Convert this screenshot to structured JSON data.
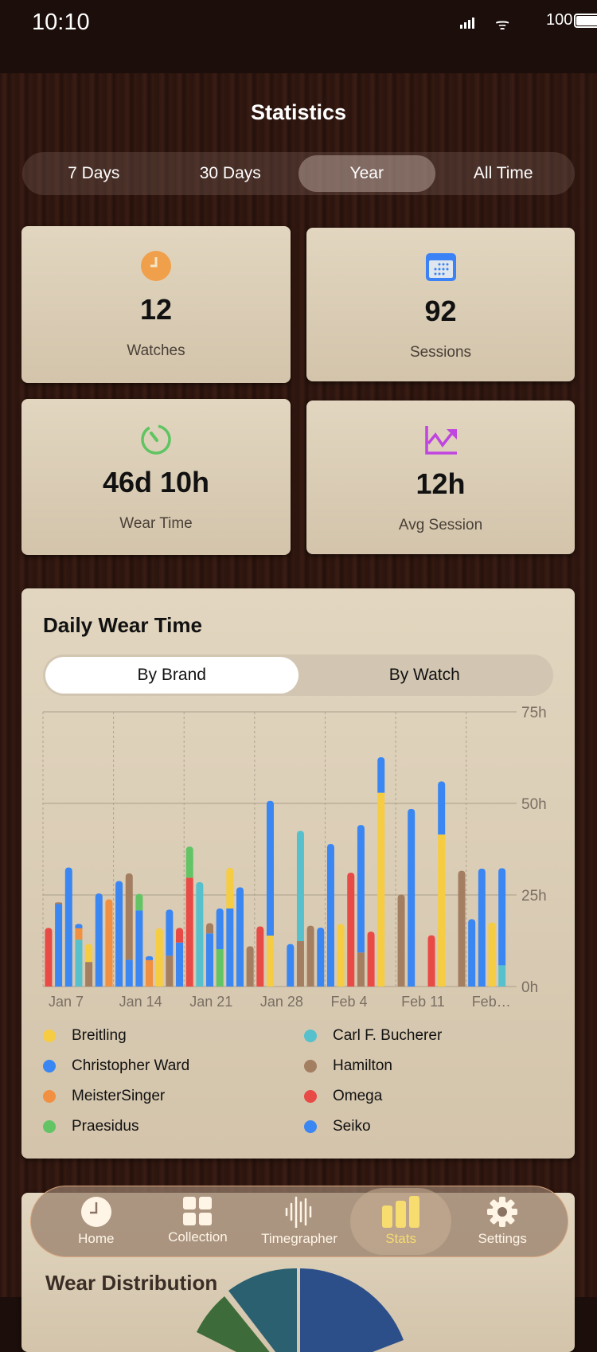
{
  "status_bar": {
    "time": "10:10",
    "battery": "100"
  },
  "header": {
    "title": "Statistics"
  },
  "range_tabs": [
    {
      "label": "7 Days"
    },
    {
      "label": "30 Days"
    },
    {
      "label": "Year",
      "selected": true
    },
    {
      "label": "All Time"
    }
  ],
  "stats": [
    {
      "icon": "clock-icon",
      "color": "#f0a04b",
      "value": "12",
      "label": "Watches"
    },
    {
      "icon": "calendar-icon",
      "color": "#3b82f6",
      "value": "92",
      "label": "Sessions"
    },
    {
      "icon": "timer-icon",
      "color": "#5fc462",
      "value": "46d 10h",
      "label": "Wear Time"
    },
    {
      "icon": "chart-up-icon",
      "color": "#c044e0",
      "value": "12h",
      "label": "Avg Session"
    }
  ],
  "daily_card": {
    "title": "Daily Wear Time",
    "toggle": [
      {
        "label": "By Brand",
        "selected": true
      },
      {
        "label": "By Watch"
      }
    ]
  },
  "chart_data": {
    "type": "bar",
    "stacked": true,
    "ylim": [
      0,
      75
    ],
    "yticks": [
      "0h",
      "25h",
      "50h",
      "75h"
    ],
    "ytick_values": [
      0,
      25,
      50,
      75
    ],
    "xtick_labels": [
      "Jan 7",
      "Jan 14",
      "Jan 21",
      "Jan 28",
      "Feb 4",
      "Feb 11",
      "Feb…"
    ],
    "grid": true,
    "legend_placement": "bottom",
    "brands": [
      {
        "name": "Breitling",
        "color": "#f5cc42"
      },
      {
        "name": "Carl F. Bucherer",
        "color": "#56c0cc"
      },
      {
        "name": "Christopher Ward",
        "color": "#3a86f2"
      },
      {
        "name": "Hamilton",
        "color": "#a47e60"
      },
      {
        "name": "MeisterSinger",
        "color": "#f09040"
      },
      {
        "name": "Omega",
        "color": "#e84a45"
      },
      {
        "name": "Praesidus",
        "color": "#62c465"
      },
      {
        "name": "Seiko",
        "color": "#3a86f2"
      }
    ],
    "days": [
      {
        "date": "Jan 7",
        "segments": [
          [
            "Omega",
            16
          ]
        ]
      },
      {
        "date": "Jan 8",
        "segments": [
          [
            "Christopher Ward",
            22.5
          ],
          [
            "Hamilton",
            0.5
          ]
        ]
      },
      {
        "date": "Jan 9",
        "segments": [
          [
            "Christopher Ward",
            32.5
          ]
        ]
      },
      {
        "date": "Jan 10",
        "segments": [
          [
            "Carl F. Bucherer",
            12.8
          ],
          [
            "MeisterSinger",
            3.1
          ],
          [
            "Christopher Ward",
            1.2
          ]
        ]
      },
      {
        "date": "Jan 11",
        "segments": [
          [
            "Hamilton",
            6.7
          ],
          [
            "Breitling",
            4.9
          ]
        ]
      },
      {
        "date": "Jan 12",
        "segments": [
          [
            "Christopher Ward",
            25.4
          ]
        ]
      },
      {
        "date": "Jan 13",
        "segments": [
          [
            "MeisterSinger",
            23.8
          ]
        ]
      },
      {
        "date": "Jan 14",
        "segments": [
          [
            "Christopher Ward",
            28.8
          ]
        ]
      },
      {
        "date": "Jan 15",
        "segments": [
          [
            "Christopher Ward",
            7.3
          ],
          [
            "Hamilton",
            23.6
          ]
        ]
      },
      {
        "date": "Jan 16",
        "segments": [
          [
            "Christopher Ward",
            20.8
          ],
          [
            "Praesidus",
            4.5
          ]
        ]
      },
      {
        "date": "Jan 17",
        "segments": [
          [
            "MeisterSinger",
            7.2
          ],
          [
            "Christopher Ward",
            1.1
          ]
        ]
      },
      {
        "date": "Jan 18",
        "segments": [
          [
            "Breitling",
            15.9
          ]
        ]
      },
      {
        "date": "Jan 19",
        "segments": [
          [
            "Hamilton",
            8.4
          ],
          [
            "Christopher Ward",
            12.6
          ]
        ]
      },
      {
        "date": "Jan 20",
        "segments": [
          [
            "Christopher Ward",
            12
          ],
          [
            "Omega",
            4
          ]
        ]
      },
      {
        "date": "Jan 21",
        "segments": [
          [
            "Omega",
            29.7
          ],
          [
            "Praesidus",
            8.5
          ]
        ]
      },
      {
        "date": "Jan 22",
        "segments": [
          [
            "Carl F. Bucherer",
            28.5
          ]
        ]
      },
      {
        "date": "Jan 23",
        "segments": [
          [
            "Christopher Ward",
            14.5
          ],
          [
            "Hamilton",
            2.8
          ]
        ]
      },
      {
        "date": "Jan 24",
        "segments": [
          [
            "Praesidus",
            10.2
          ],
          [
            "Christopher Ward",
            11.1
          ]
        ]
      },
      {
        "date": "Jan 25",
        "segments": [
          [
            "Christopher Ward",
            21.3
          ],
          [
            "Breitling",
            11.1
          ]
        ]
      },
      {
        "date": "Jan 26",
        "segments": [
          [
            "Christopher Ward",
            27.1
          ]
        ]
      },
      {
        "date": "Jan 27",
        "segments": [
          [
            "Hamilton",
            11
          ]
        ]
      },
      {
        "date": "Jan 28",
        "segments": [
          [
            "Omega",
            16.4
          ]
        ]
      },
      {
        "date": "Jan 29",
        "segments": [
          [
            "Breitling",
            13.9
          ],
          [
            "Christopher Ward",
            36.8
          ]
        ]
      },
      {
        "date": "Jan 30",
        "segments": []
      },
      {
        "date": "Jan 31",
        "segments": [
          [
            "Christopher Ward",
            11.6
          ]
        ]
      },
      {
        "date": "Feb 1",
        "segments": [
          [
            "Hamilton",
            12.4
          ],
          [
            "Carl F. Bucherer",
            30.1
          ]
        ]
      },
      {
        "date": "Feb 2",
        "segments": [
          [
            "Hamilton",
            16.6
          ]
        ]
      },
      {
        "date": "Feb 3",
        "segments": [
          [
            "Christopher Ward",
            16.1
          ]
        ]
      },
      {
        "date": "Feb 4",
        "segments": [
          [
            "Christopher Ward",
            38.9
          ]
        ]
      },
      {
        "date": "Feb 5",
        "segments": [
          [
            "Breitling",
            17.1
          ]
        ]
      },
      {
        "date": "Feb 6",
        "segments": [
          [
            "Omega",
            31.1
          ]
        ]
      },
      {
        "date": "Feb 7",
        "segments": [
          [
            "Hamilton",
            9.3
          ],
          [
            "Christopher Ward",
            34.8
          ]
        ]
      },
      {
        "date": "Feb 8",
        "segments": [
          [
            "Omega",
            15
          ]
        ]
      },
      {
        "date": "Feb 9",
        "segments": [
          [
            "Breitling",
            52.9
          ],
          [
            "Christopher Ward",
            9.7
          ]
        ]
      },
      {
        "date": "Feb 10",
        "segments": []
      },
      {
        "date": "Feb 11",
        "segments": [
          [
            "Hamilton",
            25.1
          ]
        ]
      },
      {
        "date": "Feb 12",
        "segments": [
          [
            "Christopher Ward",
            48.5
          ]
        ]
      },
      {
        "date": "Feb 13",
        "segments": []
      },
      {
        "date": "Feb 14",
        "segments": [
          [
            "Omega",
            14
          ]
        ]
      },
      {
        "date": "Feb 15",
        "segments": [
          [
            "Breitling",
            41.5
          ],
          [
            "Christopher Ward",
            14.5
          ]
        ]
      },
      {
        "date": "Feb 16",
        "segments": []
      },
      {
        "date": "Feb 17",
        "segments": [
          [
            "Hamilton",
            31.6
          ]
        ]
      },
      {
        "date": "Feb 18",
        "segments": [
          [
            "Christopher Ward",
            18.4
          ]
        ]
      },
      {
        "date": "Feb 19",
        "segments": [
          [
            "Christopher Ward",
            32.2
          ]
        ]
      },
      {
        "date": "Feb 20",
        "segments": [
          [
            "Breitling",
            17.5
          ]
        ]
      },
      {
        "date": "Feb 21",
        "segments": [
          [
            "Carl F. Bucherer",
            5.8
          ],
          [
            "Christopher Ward",
            26.5
          ]
        ]
      }
    ]
  },
  "legend": [
    {
      "name": "Breitling",
      "color": "#f5cc42"
    },
    {
      "name": "Carl F. Bucherer",
      "color": "#56c0cc"
    },
    {
      "name": "Christopher Ward",
      "color": "#3a86f2"
    },
    {
      "name": "Hamilton",
      "color": "#a47e60"
    },
    {
      "name": "MeisterSinger",
      "color": "#f09040"
    },
    {
      "name": "Omega",
      "color": "#e84a45"
    },
    {
      "name": "Praesidus",
      "color": "#62c465"
    },
    {
      "name": "Seiko",
      "color": "#3a86f2"
    }
  ],
  "distribution_card": {
    "title": "Wear Distribution"
  },
  "tab_bar": [
    {
      "label": "Home",
      "icon": "clock-icon"
    },
    {
      "label": "Collection",
      "icon": "grid-icon"
    },
    {
      "label": "Timegrapher",
      "icon": "waveform-icon"
    },
    {
      "label": "Stats",
      "icon": "bar-chart-icon",
      "selected": true
    },
    {
      "label": "Settings",
      "icon": "gear-icon"
    }
  ]
}
